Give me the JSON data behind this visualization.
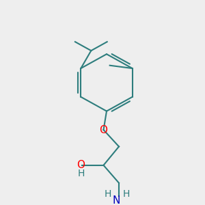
{
  "background_color": "#eeeeee",
  "bond_color": "#2d7d7d",
  "o_color": "#ff0000",
  "n_color": "#0000bb",
  "bond_width": 1.5,
  "font_size": 10,
  "fig_size": [
    3.0,
    3.0
  ],
  "dpi": 100,
  "xlim": [
    0,
    10
  ],
  "ylim": [
    0,
    10
  ]
}
